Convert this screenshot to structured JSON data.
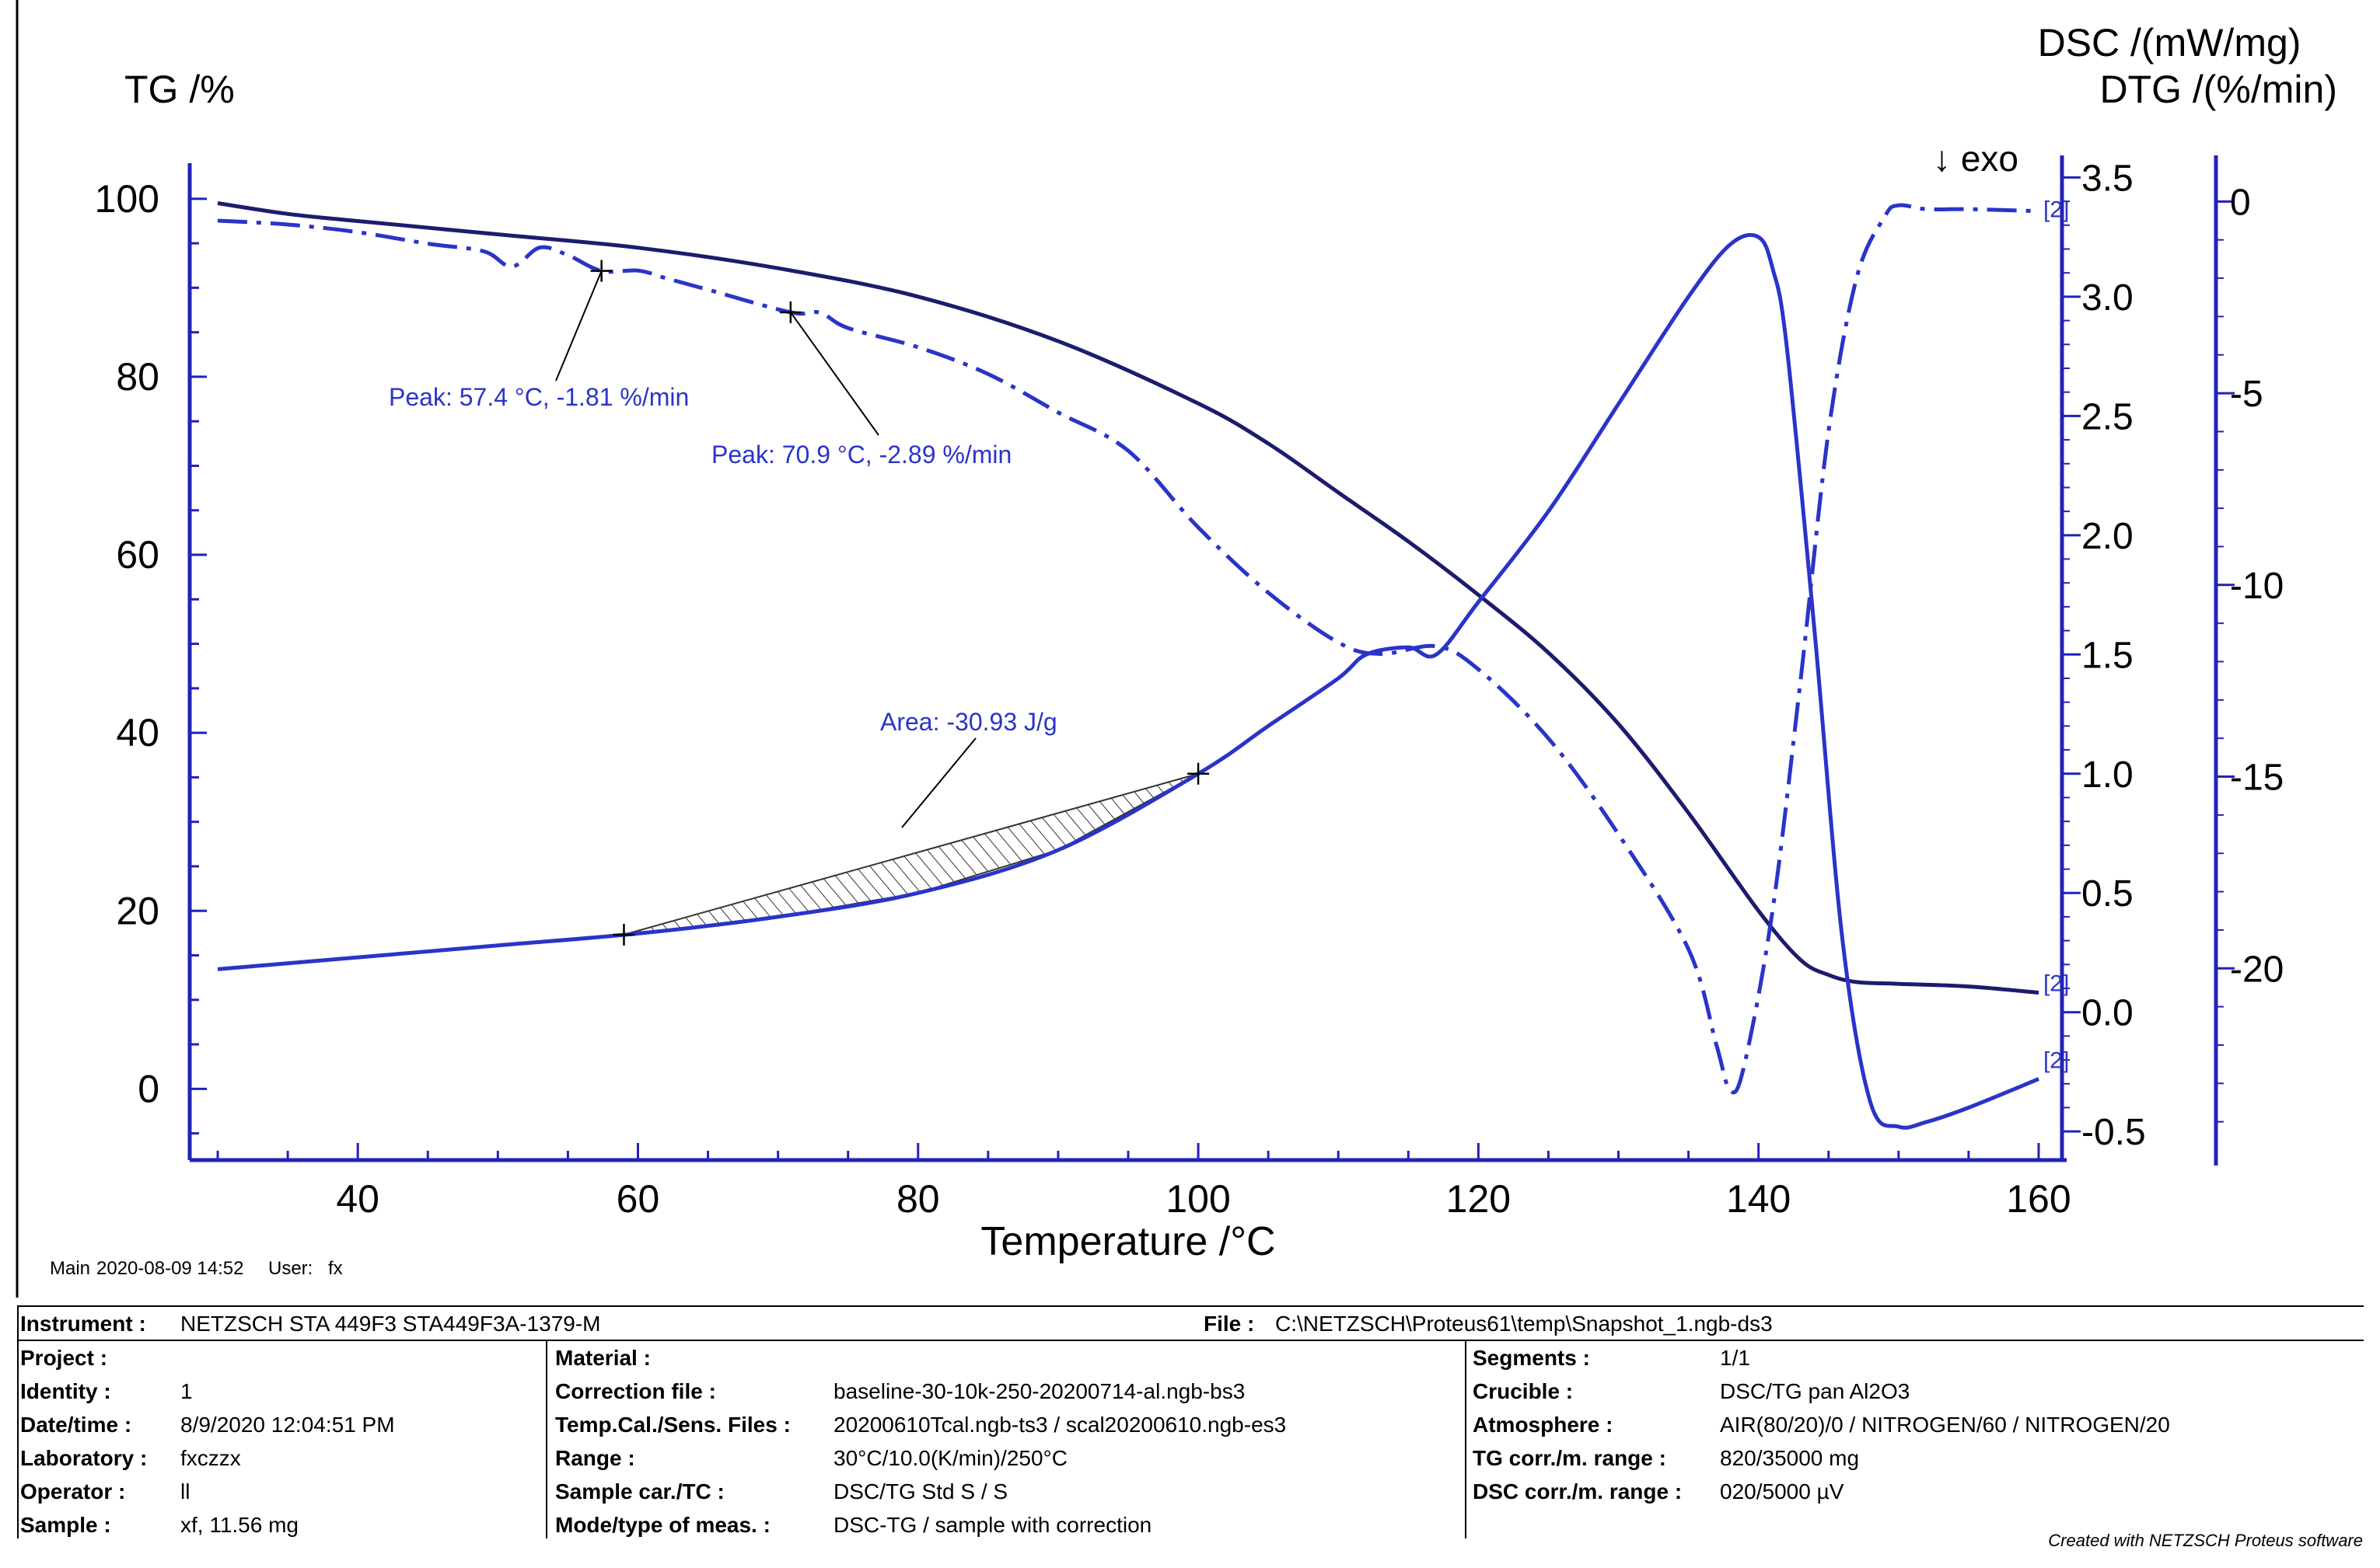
{
  "colors": {
    "dsc": "#2a34c8",
    "tg": "#1c1c6e",
    "dtg": "#2a34c8",
    "axis_right": "#2222b8",
    "annotation": "#2a34c8"
  },
  "meta_line": {
    "label": "Main",
    "datetime": "2020-08-09 14:52",
    "user_label": "User:",
    "user": "fx"
  },
  "chart_data": {
    "type": "line",
    "xlabel": "Temperature /°C",
    "xlim": [
      28,
      162
    ],
    "xticks": [
      40,
      60,
      80,
      100,
      120,
      140,
      160
    ],
    "axes": {
      "tg": {
        "label": "TG /%",
        "lim": [
          -8,
          104
        ],
        "ticks": [
          0,
          20,
          40,
          60,
          80,
          100
        ]
      },
      "dsc": {
        "label": "DSC /(mW/mg)",
        "lim": [
          -0.62,
          3.56
        ],
        "ticks": [
          -0.5,
          0.0,
          0.5,
          1.0,
          1.5,
          2.0,
          2.5,
          3.0,
          3.5
        ],
        "tick_labels": [
          "-0.5",
          "0.0",
          "0.5",
          "1.0",
          "1.5",
          "2.0",
          "2.5",
          "3.0",
          "3.5"
        ]
      },
      "dtg": {
        "label": "DTG /(%/min)",
        "lim": [
          -25.0,
          1.0
        ],
        "ticks": [
          -20,
          -15,
          -10,
          -5,
          0
        ]
      }
    },
    "exo_label": "↓ exo",
    "series": [
      {
        "name": "TG",
        "axis": "tg",
        "style": "solid",
        "tag": "[2]",
        "x": [
          30,
          35,
          40,
          50,
          60,
          70,
          80,
          90,
          100,
          105,
          110,
          115,
          120,
          125,
          130,
          135,
          140,
          143,
          145,
          147,
          150,
          155,
          160
        ],
        "y": [
          99.5,
          98.3,
          97.5,
          96.0,
          94.5,
          92.2,
          89.0,
          84.0,
          77.0,
          72.5,
          67.0,
          61.5,
          55.5,
          49.0,
          41.0,
          31.0,
          20.0,
          14.5,
          12.8,
          12.0,
          11.8,
          11.5,
          10.8
        ]
      },
      {
        "name": "DSC",
        "axis": "dsc",
        "style": "solid",
        "tag": "[2]",
        "x": [
          30,
          40,
          50,
          60,
          70,
          80,
          90,
          100,
          105,
          110,
          112,
          115,
          117,
          120,
          125,
          130,
          135,
          138,
          140,
          141,
          142,
          144,
          146,
          148,
          150,
          152,
          155,
          160
        ],
        "y": [
          0.18,
          0.23,
          0.28,
          0.33,
          0.4,
          0.5,
          0.68,
          1.0,
          1.2,
          1.4,
          1.5,
          1.53,
          1.5,
          1.72,
          2.1,
          2.55,
          3.0,
          3.22,
          3.25,
          3.12,
          2.8,
          1.6,
          0.3,
          -0.38,
          -0.48,
          -0.46,
          -0.4,
          -0.28
        ]
      },
      {
        "name": "DTG",
        "axis": "dtg",
        "style": "dashdot",
        "tag": "[2]",
        "x": [
          30,
          35,
          40,
          45,
          49,
          51,
          53,
          55,
          57.4,
          60,
          62,
          65,
          70.9,
          73,
          75,
          80,
          85,
          90,
          95,
          100,
          105,
          110,
          113,
          117,
          120,
          125,
          130,
          135,
          137,
          138,
          139,
          141,
          143,
          145,
          147,
          149,
          150,
          152,
          155,
          160
        ],
        "y": [
          -0.5,
          -0.6,
          -0.8,
          -1.1,
          -1.3,
          -1.7,
          -1.2,
          -1.4,
          -1.81,
          -1.8,
          -2.0,
          -2.3,
          -2.89,
          -2.9,
          -3.3,
          -3.8,
          -4.5,
          -5.5,
          -6.5,
          -8.5,
          -10.2,
          -11.5,
          -11.8,
          -11.6,
          -12.2,
          -14.0,
          -16.5,
          -19.5,
          -22.0,
          -23.2,
          -22.5,
          -18.5,
          -12.5,
          -6.0,
          -2.0,
          -0.4,
          -0.1,
          -0.2,
          -0.2,
          -0.25
        ]
      }
    ],
    "annotations": [
      {
        "text": "Peak: 57.4 °C, -1.81 %/min",
        "x": 57.4,
        "y": -1.81,
        "axis": "dtg"
      },
      {
        "text": "Peak: 70.9 °C, -2.89 %/min",
        "x": 70.9,
        "y": -2.89,
        "axis": "dtg"
      },
      {
        "text": "Area: -30.93 J/g",
        "x1": 59.0,
        "x2": 100.0,
        "axis": "dsc"
      }
    ]
  },
  "footer": {
    "instrument_label": "Instrument :",
    "instrument": "NETZSCH STA 449F3 STA449F3A-1379-M",
    "file_label": "File :",
    "file": "C:\\NETZSCH\\Proteus61\\temp\\Snapshot_1.ngb-ds3",
    "col1": [
      {
        "label": "Project :",
        "value": ""
      },
      {
        "label": "Identity :",
        "value": "1"
      },
      {
        "label": "Date/time :",
        "value": "8/9/2020 12:04:51 PM"
      },
      {
        "label": "Laboratory :",
        "value": "fxczzx"
      },
      {
        "label": "Operator :",
        "value": "ll"
      },
      {
        "label": "Sample :",
        "value": "xf, 11.56 mg"
      }
    ],
    "col2": [
      {
        "label": "Material :",
        "value": ""
      },
      {
        "label": "Correction file :",
        "value": "baseline-30-10k-250-20200714-al.ngb-bs3"
      },
      {
        "label": "Temp.Cal./Sens. Files :",
        "value": "20200610Tcal.ngb-ts3 / scal20200610.ngb-es3"
      },
      {
        "label": "Range :",
        "value": "30°C/10.0(K/min)/250°C"
      },
      {
        "label": "Sample car./TC :",
        "value": "DSC/TG Std S / S"
      },
      {
        "label": "Mode/type of meas. :",
        "value": "DSC-TG / sample with correction"
      }
    ],
    "col3": [
      {
        "label": "Segments :",
        "value": "1/1"
      },
      {
        "label": "Crucible :",
        "value": "DSC/TG pan Al2O3"
      },
      {
        "label": "Atmosphere :",
        "value": "AIR(80/20)/0 / NITROGEN/60 / NITROGEN/20"
      },
      {
        "label": "TG corr./m. range :",
        "value": "820/35000 mg"
      },
      {
        "label": "DSC corr./m. range :",
        "value": "020/5000 µV"
      }
    ],
    "credit": "Created with NETZSCH Proteus software"
  }
}
